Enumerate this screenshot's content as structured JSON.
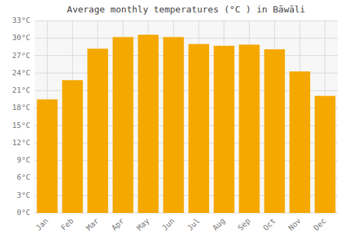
{
  "chart_data": {
    "type": "bar",
    "title": "Average monthly temperatures (°C ) in Bāwāli",
    "categories": [
      "Jan",
      "Feb",
      "Mar",
      "Apr",
      "May",
      "Jun",
      "Jul",
      "Aug",
      "Sep",
      "Oct",
      "Nov",
      "Dec"
    ],
    "values": [
      19.5,
      22.8,
      28.2,
      30.2,
      30.6,
      30.2,
      29.0,
      28.7,
      28.9,
      28.1,
      24.3,
      20.1
    ],
    "color": "#F5A800",
    "ylim": [
      0,
      33
    ],
    "yticks": [
      {
        "value": 0,
        "label": "0°C"
      },
      {
        "value": 3,
        "label": "3°C"
      },
      {
        "value": 6,
        "label": "6°C"
      },
      {
        "value": 9,
        "label": "9°C"
      },
      {
        "value": 12,
        "label": "12°C"
      },
      {
        "value": 15,
        "label": "15°C"
      },
      {
        "value": 18,
        "label": "18°C"
      },
      {
        "value": 21,
        "label": "21°C"
      },
      {
        "value": 24,
        "label": "24°C"
      },
      {
        "value": 27,
        "label": "27°C"
      },
      {
        "value": 30,
        "label": "30°C"
      },
      {
        "value": 33,
        "label": "33°C"
      }
    ],
    "grid": true
  }
}
